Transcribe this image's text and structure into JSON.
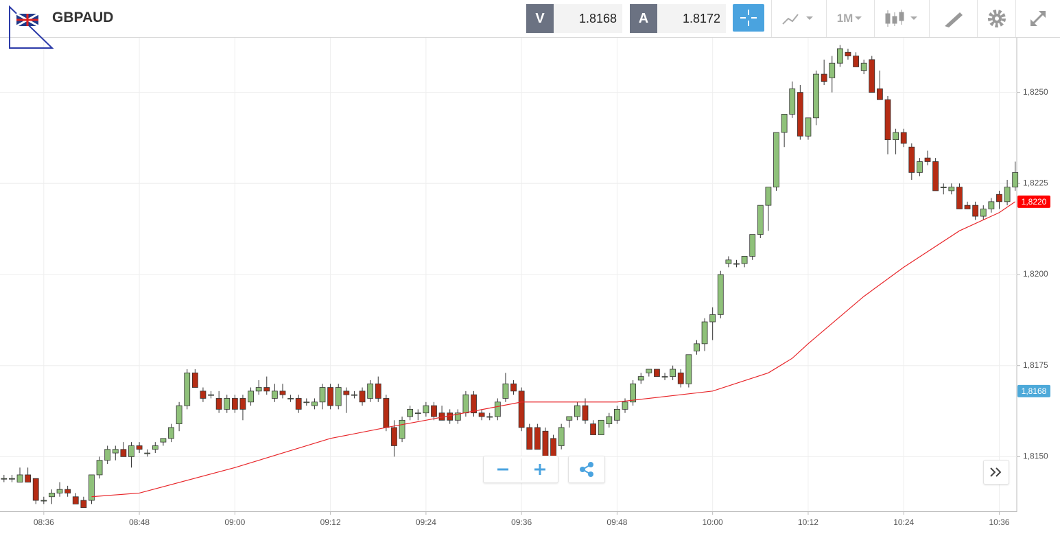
{
  "toolbar": {
    "symbol": "GBPAUD",
    "bid_label": "V",
    "bid": "1.8168",
    "ask_label": "A",
    "ask": "1.8172",
    "timeframe": "1M"
  },
  "chart_data": {
    "type": "candlestick",
    "x": [
      511,
      512,
      513,
      514,
      515,
      516,
      517,
      518,
      519,
      520,
      521,
      522,
      523,
      524,
      525,
      526,
      527,
      528,
      529,
      530,
      531,
      532,
      533,
      534,
      535,
      536,
      537,
      538,
      539,
      540,
      541,
      542,
      543,
      544,
      545,
      546,
      547,
      548,
      549,
      550,
      551,
      552,
      553,
      554,
      555,
      556,
      557,
      558,
      559,
      560,
      561,
      562,
      563,
      564,
      565,
      566,
      567,
      568,
      569,
      570,
      571,
      572,
      573,
      574,
      575,
      576,
      577,
      578,
      579,
      580,
      581,
      582,
      583,
      584,
      585,
      586,
      587,
      588,
      589,
      590,
      591,
      592,
      593,
      594,
      595,
      596,
      597,
      598,
      599,
      600,
      601,
      602,
      603,
      604,
      605,
      606,
      607,
      608,
      609,
      610,
      611,
      612,
      613,
      614,
      615,
      616,
      617,
      618,
      619,
      620,
      621,
      622,
      623,
      624,
      625,
      626,
      627,
      628,
      629,
      630,
      631,
      632,
      633,
      634,
      635,
      636,
      637,
      638
    ],
    "open": [
      1.8144,
      1.8144,
      1.8143,
      1.8145,
      1.8144,
      1.8138,
      1.8139,
      1.814,
      1.8141,
      1.8139,
      1.8138,
      1.8138,
      1.8145,
      1.8149,
      1.8151,
      1.8152,
      1.815,
      1.8153,
      1.8151,
      1.8152,
      1.8154,
      1.8155,
      1.8159,
      1.8164,
      1.8173,
      1.8168,
      1.8167,
      1.8166,
      1.8163,
      1.8166,
      1.8166,
      1.8165,
      1.8168,
      1.8169,
      1.8166,
      1.8168,
      1.8166,
      1.8166,
      1.8165,
      1.8164,
      1.8165,
      1.8169,
      1.8164,
      1.8168,
      1.8167,
      1.8168,
      1.8166,
      1.817,
      1.8166,
      1.8158,
      1.8155,
      1.8161,
      1.8162,
      1.8162,
      1.8164,
      1.8162,
      1.8162,
      1.816,
      1.8162,
      1.8167,
      1.8162,
      1.8161,
      1.8161,
      1.8166,
      1.817,
      1.8168,
      1.8158,
      1.8158,
      1.8157,
      1.8155,
      1.8153,
      1.816,
      1.8161,
      1.8164,
      1.8159,
      1.8156,
      1.8159,
      1.816,
      1.8163,
      1.8165,
      1.8171,
      1.8173,
      1.8174,
      1.8172,
      1.8172,
      1.8173,
      1.817,
      1.8179,
      1.8181,
      1.8187,
      1.8189,
      1.8203,
      1.8203,
      1.8203,
      1.8205,
      1.8211,
      1.8219,
      1.8224,
      1.8239,
      1.8244,
      1.825,
      1.8238,
      1.8243,
      1.8255,
      1.8254,
      1.8258,
      1.8261,
      1.826,
      1.8256,
      1.8259,
      1.8251,
      1.8248,
      1.8237,
      1.8239,
      1.8235,
      1.8228,
      1.8232,
      1.8231,
      1.8224,
      1.8223,
      1.8224,
      1.8219,
      1.8219,
      1.8216,
      1.8218,
      1.8222,
      1.822,
      1.8224
    ],
    "high": [
      1.8145,
      1.8145,
      1.8147,
      1.8147,
      1.8144,
      1.8139,
      1.8141,
      1.8143,
      1.8142,
      1.814,
      1.8139,
      1.8145,
      1.815,
      1.8153,
      1.8153,
      1.8154,
      1.8154,
      1.8154,
      1.8152,
      1.8154,
      1.8155,
      1.8159,
      1.8165,
      1.8174,
      1.8174,
      1.8169,
      1.8168,
      1.8168,
      1.8167,
      1.8167,
      1.8167,
      1.8169,
      1.8171,
      1.8172,
      1.817,
      1.817,
      1.8167,
      1.8167,
      1.8166,
      1.8166,
      1.817,
      1.817,
      1.817,
      1.8169,
      1.8168,
      1.8169,
      1.8171,
      1.8172,
      1.8167,
      1.816,
      1.8161,
      1.8164,
      1.8163,
      1.8165,
      1.8165,
      1.8164,
      1.8163,
      1.8163,
      1.8168,
      1.8168,
      1.8163,
      1.8162,
      1.8166,
      1.8173,
      1.8171,
      1.8169,
      1.8159,
      1.8159,
      1.8158,
      1.8156,
      1.8159,
      1.8161,
      1.8165,
      1.8166,
      1.816,
      1.816,
      1.8162,
      1.8164,
      1.8166,
      1.8171,
      1.8173,
      1.8174,
      1.8174,
      1.8173,
      1.8175,
      1.8174,
      1.8178,
      1.8182,
      1.8188,
      1.8191,
      1.8201,
      1.8205,
      1.8204,
      1.8205,
      1.8211,
      1.8219,
      1.8224,
      1.8239,
      1.8244,
      1.8253,
      1.8252,
      1.8243,
      1.8256,
      1.8259,
      1.826,
      1.8263,
      1.8262,
      1.8261,
      1.8259,
      1.826,
      1.8256,
      1.8249,
      1.824,
      1.824,
      1.8236,
      1.8232,
      1.8234,
      1.8232,
      1.8225,
      1.8225,
      1.8225,
      1.822,
      1.822,
      1.8219,
      1.8221,
      1.8223,
      1.8226,
      1.8231
    ],
    "low": [
      1.8143,
      1.8143,
      1.8143,
      1.8143,
      1.8137,
      1.8137,
      1.8137,
      1.8139,
      1.8139,
      1.8137,
      1.8136,
      1.8137,
      1.8144,
      1.8148,
      1.8149,
      1.815,
      1.8147,
      1.8151,
      1.815,
      1.8151,
      1.8153,
      1.8154,
      1.8157,
      1.8163,
      1.8169,
      1.8165,
      1.8166,
      1.8162,
      1.8162,
      1.8162,
      1.816,
      1.8164,
      1.8167,
      1.8167,
      1.8165,
      1.8166,
      1.8165,
      1.8162,
      1.8164,
      1.8163,
      1.8163,
      1.8163,
      1.8163,
      1.8162,
      1.8166,
      1.8164,
      1.8165,
      1.8165,
      1.8157,
      1.815,
      1.8154,
      1.816,
      1.816,
      1.8161,
      1.816,
      1.816,
      1.8159,
      1.8159,
      1.8161,
      1.8161,
      1.816,
      1.816,
      1.816,
      1.8165,
      1.8167,
      1.8157,
      1.8152,
      1.8152,
      1.8149,
      1.8148,
      1.8152,
      1.8158,
      1.816,
      1.8159,
      1.8156,
      1.8156,
      1.8158,
      1.8159,
      1.8162,
      1.8164,
      1.817,
      1.8172,
      1.8172,
      1.8171,
      1.8171,
      1.8169,
      1.8169,
      1.8178,
      1.8179,
      1.8182,
      1.8188,
      1.8202,
      1.8202,
      1.8202,
      1.8204,
      1.821,
      1.8212,
      1.8223,
      1.8235,
      1.8243,
      1.8237,
      1.8237,
      1.8241,
      1.8252,
      1.825,
      1.8257,
      1.8259,
      1.8257,
      1.8255,
      1.825,
      1.8248,
      1.8233,
      1.8233,
      1.8235,
      1.8226,
      1.8227,
      1.823,
      1.8223,
      1.8222,
      1.8222,
      1.8218,
      1.8218,
      1.8215,
      1.8215,
      1.8217,
      1.8218,
      1.8219,
      1.8223
    ],
    "close": [
      1.8144,
      1.8144,
      1.8145,
      1.8143,
      1.8138,
      1.8138,
      1.814,
      1.8141,
      1.814,
      1.8137,
      1.8136,
      1.8145,
      1.8149,
      1.8152,
      1.8152,
      1.815,
      1.8153,
      1.8152,
      1.8151,
      1.8153,
      1.8155,
      1.8158,
      1.8164,
      1.8173,
      1.8169,
      1.8166,
      1.8167,
      1.8163,
      1.8166,
      1.8163,
      1.8163,
      1.8168,
      1.8169,
      1.8168,
      1.8168,
      1.8167,
      1.8166,
      1.8163,
      1.8165,
      1.8165,
      1.8169,
      1.8164,
      1.8169,
      1.8167,
      1.8167,
      1.8165,
      1.817,
      1.8166,
      1.8158,
      1.8153,
      1.816,
      1.8163,
      1.8162,
      1.8164,
      1.8161,
      1.816,
      1.816,
      1.8162,
      1.8167,
      1.8162,
      1.8161,
      1.8161,
      1.8165,
      1.817,
      1.8168,
      1.8158,
      1.8152,
      1.8152,
      1.815,
      1.815,
      1.8158,
      1.8161,
      1.8164,
      1.816,
      1.8156,
      1.816,
      1.8161,
      1.8163,
      1.8165,
      1.817,
      1.8172,
      1.8174,
      1.8172,
      1.8172,
      1.8174,
      1.817,
      1.8178,
      1.8181,
      1.8187,
      1.8189,
      1.82,
      1.8204,
      1.8203,
      1.8205,
      1.8211,
      1.8219,
      1.8224,
      1.8239,
      1.8244,
      1.8251,
      1.8238,
      1.8243,
      1.8255,
      1.8253,
      1.8258,
      1.8262,
      1.826,
      1.8257,
      1.8258,
      1.825,
      1.8248,
      1.8237,
      1.8239,
      1.8236,
      1.8228,
      1.8231,
      1.8231,
      1.8223,
      1.8224,
      1.8224,
      1.8218,
      1.8218,
      1.8216,
      1.8218,
      1.822,
      1.822,
      1.8224,
      1.8228
    ],
    "up_color": "#8fc17a",
    "down_color": "#b52c14",
    "moving_average": {
      "x": [
        522,
        528,
        540,
        552,
        559,
        564,
        576,
        588,
        600,
        607,
        610,
        612,
        619,
        624,
        631,
        636,
        638
      ],
      "values": [
        1.8139,
        1.814,
        1.8147,
        1.8155,
        1.8158,
        1.816,
        1.8165,
        1.8165,
        1.8168,
        1.8173,
        1.8177,
        1.8181,
        1.8194,
        1.8202,
        1.8212,
        1.8217,
        1.822
      ],
      "color": "#e8262a"
    },
    "price_tags": [
      {
        "value": 1.822,
        "label": "1,8220",
        "color": "#ff0000"
      },
      {
        "value": 1.8168,
        "label": "1,8168",
        "color": "#4da9d9"
      }
    ],
    "xlim": [
      510.5,
      638.2
    ],
    "xticks": [
      {
        "value": 516,
        "label": "08:36"
      },
      {
        "value": 528,
        "label": "08:48"
      },
      {
        "value": 540,
        "label": "09:00"
      },
      {
        "value": 552,
        "label": "09:12"
      },
      {
        "value": 564,
        "label": "09:24"
      },
      {
        "value": 576,
        "label": "09:36"
      },
      {
        "value": 588,
        "label": "09:48"
      },
      {
        "value": 600,
        "label": "10:00"
      },
      {
        "value": 612,
        "label": "10:12"
      },
      {
        "value": 624,
        "label": "10:24"
      },
      {
        "value": 636,
        "label": "10:36"
      }
    ],
    "ylim": [
      1.8135,
      1.8265
    ],
    "yticks": [
      {
        "value": 1.815,
        "label": "1,8150"
      },
      {
        "value": 1.8175,
        "label": "1,8175"
      },
      {
        "value": 1.82,
        "label": "1,8200"
      },
      {
        "value": 1.8225,
        "label": "1,8225"
      },
      {
        "value": 1.825,
        "label": "1,8250"
      }
    ],
    "grid": true
  }
}
